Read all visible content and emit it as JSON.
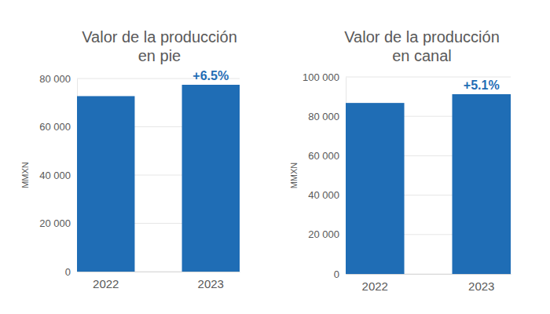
{
  "chart_data": [
    {
      "type": "bar",
      "title": "Valor de la producción\nen pie",
      "y_label": "MMXN",
      "categories": [
        "2022",
        "2023"
      ],
      "values": [
        72700,
        77400
      ],
      "color": "#1f6db5",
      "ylim": [
        0,
        80000
      ],
      "yticks": [
        0,
        {
          "value": 20000,
          "label": "20 000"
        },
        {
          "value": 40000,
          "label": "40 000"
        },
        {
          "value": 60000,
          "label": "60 000"
        },
        {
          "value": 80000,
          "label": "80 000"
        }
      ],
      "grid": true,
      "annotations": [
        {
          "text": "+6.5%",
          "x": "2023"
        }
      ]
    },
    {
      "type": "bar",
      "title": "Valor de la producción\nen canal",
      "y_label": "MMXN",
      "categories": [
        "2022",
        "2023"
      ],
      "values": [
        86800,
        91230
      ],
      "color": "#1f6db5",
      "ylim": [
        0,
        100000
      ],
      "yticks": [
        0,
        {
          "value": 20000,
          "label": "20 000"
        },
        {
          "value": 40000,
          "label": "40 000"
        },
        {
          "value": 60000,
          "label": "60 000"
        },
        {
          "value": 80000,
          "label": "80 000"
        },
        {
          "value": 100000,
          "label": "100 000"
        }
      ],
      "grid": true,
      "annotations": [
        {
          "text": "+5.1%",
          "x": "2023"
        }
      ]
    }
  ]
}
